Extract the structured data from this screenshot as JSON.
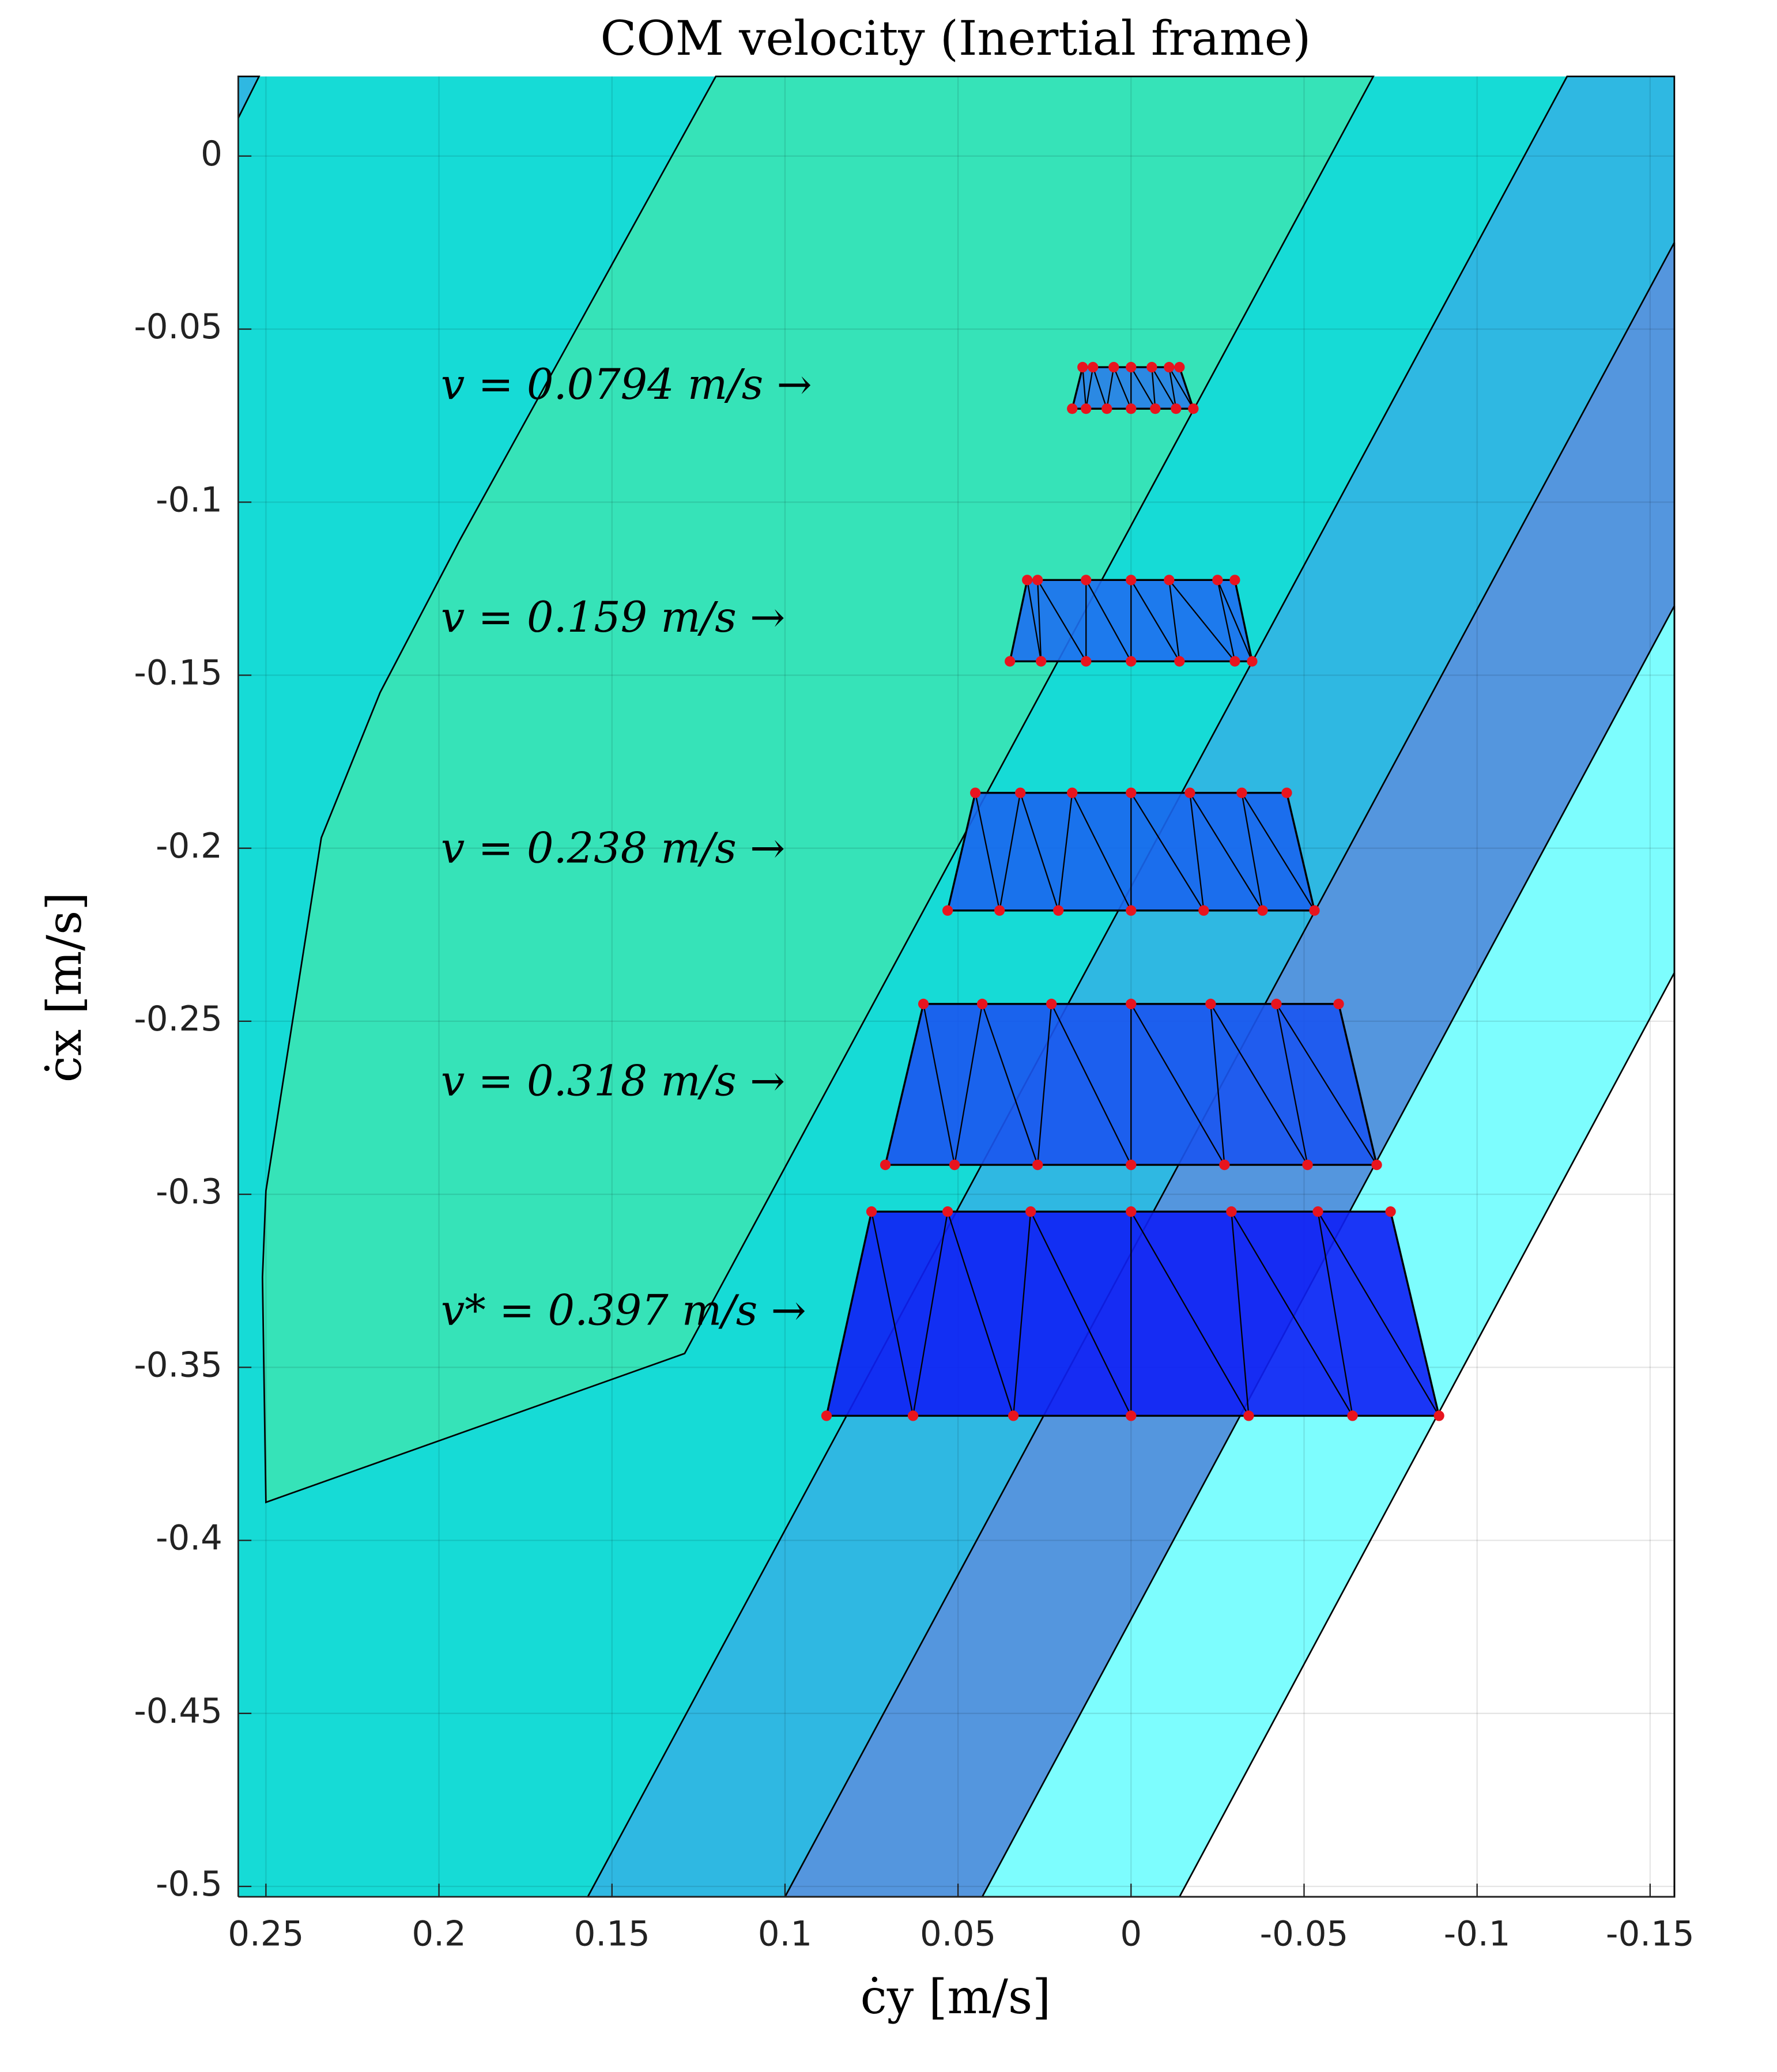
{
  "chart_data": {
    "type": "polytope",
    "title": "COM velocity (Inertial frame)",
    "xlabel": "ċy [m/s]",
    "ylabel": "ċx [m/s]",
    "xlim": [
      0.258,
      -0.157
    ],
    "ylim": [
      -0.503,
      0.023
    ],
    "xticks": [
      0.25,
      0.2,
      0.15,
      0.1,
      0.05,
      0,
      -0.05,
      -0.1,
      -0.15
    ],
    "yticks": [
      0,
      -0.05,
      -0.1,
      -0.15,
      -0.2,
      -0.25,
      -0.3,
      -0.35,
      -0.4,
      -0.45,
      -0.5
    ],
    "grid": true,
    "regions": [
      {
        "color": "#16dbd6",
        "cy": [
          0.258,
          -0.157,
          -0.157,
          0.258
        ],
        "cx": [
          0.023,
          0.023,
          -0.503,
          -0.503
        ]
      },
      {
        "color": "#2fb8e2",
        "cy": [
          0.258,
          0.252,
          0.258
        ],
        "cx": [
          0.023,
          0.023,
          0.011
        ]
      },
      {
        "color": "#36e3b8",
        "cy": [
          0.12,
          -0.07,
          0.129,
          0.25,
          0.251,
          0.25,
          0.234,
          0.217,
          0.194
        ],
        "cx": [
          0.023,
          0.023,
          -0.346,
          -0.389,
          -0.324,
          -0.299,
          -0.197,
          -0.155,
          -0.111
        ]
      },
      {
        "color": "#2fb8e2",
        "cy": [
          -0.126,
          -0.157,
          -0.157,
          0.157
        ],
        "cx": [
          0.023,
          0.023,
          -0.503,
          -0.503
        ]
      },
      {
        "color": "#5496de",
        "cy": [
          -0.157,
          -0.157,
          0.1
        ],
        "cx": [
          -0.025,
          -0.503,
          -0.503
        ]
      },
      {
        "color": "#7dfdfe",
        "cy": [
          -0.157,
          -0.157,
          0.043
        ],
        "cx": [
          -0.13,
          -0.503,
          -0.503
        ]
      },
      {
        "color": "#ffffff",
        "cy": [
          -0.157,
          -0.157,
          -0.014
        ],
        "cx": [
          -0.236,
          -0.503,
          -0.503
        ]
      }
    ],
    "polytopes": [
      {
        "label": "v = 0.0794 m/s →",
        "color": "#2a7ee8",
        "cx_top": -0.061,
        "cx_bottom": -0.073,
        "cy_top": [
          0.014,
          0.011,
          0.005,
          0,
          -0.006,
          -0.011,
          -0.014
        ],
        "cy_bottom": [
          0.017,
          0.013,
          0.007,
          0,
          -0.007,
          -0.013,
          -0.018
        ]
      },
      {
        "label": "v = 0.159 m/s →",
        "color": "#1e6fef",
        "cx_top": -0.1225,
        "cx_bottom": -0.146,
        "cy_top": [
          0.03,
          0.027,
          0.013,
          0,
          -0.011,
          -0.025,
          -0.03
        ],
        "cy_bottom": [
          0.035,
          0.026,
          0.013,
          0,
          -0.014,
          -0.03,
          -0.035
        ]
      },
      {
        "label": "v = 0.238 m/s →",
        "color": "#1a66ee",
        "cx_top": -0.184,
        "cx_bottom": -0.218,
        "cy_top": [
          0.045,
          0.032,
          0.017,
          0,
          -0.017,
          -0.032,
          -0.045
        ],
        "cy_bottom": [
          0.053,
          0.038,
          0.021,
          0,
          -0.021,
          -0.038,
          -0.053
        ]
      },
      {
        "label": "v = 0.318 m/s →",
        "color": "#1b55f0",
        "cx_top": -0.245,
        "cx_bottom": -0.2915,
        "cy_top": [
          0.06,
          0.043,
          0.023,
          0,
          -0.023,
          -0.042,
          -0.06
        ],
        "cy_bottom": [
          0.071,
          0.051,
          0.027,
          0,
          -0.027,
          -0.051,
          -0.071
        ]
      },
      {
        "label": "v* = 0.397 m/s →",
        "color": "#0f20f5",
        "cx_top": -0.305,
        "cx_bottom": -0.364,
        "cy_top": [
          0.075,
          0.053,
          0.029,
          0,
          -0.029,
          -0.054,
          -0.075
        ],
        "cy_bottom": [
          0.088,
          0.063,
          0.034,
          0,
          -0.034,
          -0.064,
          -0.089
        ]
      }
    ]
  }
}
